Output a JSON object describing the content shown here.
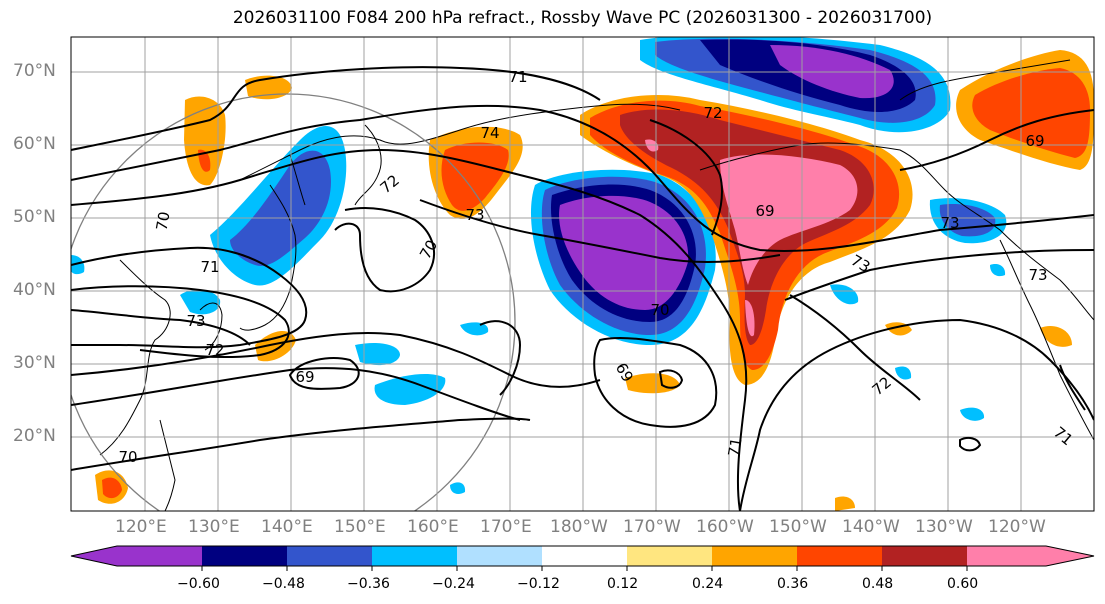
{
  "title": "2026031100 F084 200 hPa refract., Rossby Wave PC (2026031300 - 2026031700)",
  "latitudes": [
    "70°N",
    "60°N",
    "50°N",
    "40°N",
    "30°N",
    "20°N"
  ],
  "longitudes": [
    "120°E",
    "130°E",
    "140°E",
    "150°E",
    "160°E",
    "170°E",
    "180°W",
    "170°W",
    "160°W",
    "150°W",
    "140°W",
    "130°W",
    "120°W"
  ],
  "contour_labels": [
    "71",
    "74",
    "72",
    "73",
    "70",
    "70",
    "69",
    "70",
    "73",
    "72",
    "69",
    "71",
    "73",
    "73",
    "72",
    "69",
    "69",
    "70",
    "71",
    "72",
    "71",
    "73"
  ],
  "colorbar": {
    "colors": [
      "#9933cc",
      "#000080",
      "#3355cc",
      "#00bfff",
      "#b0e0ff",
      "#ffffff",
      "#ffe680",
      "#ffa500",
      "#ff4500",
      "#b22222",
      "#ff7faa"
    ],
    "tick_labels": [
      "−0.60",
      "−0.48",
      "−0.36",
      "−0.24",
      "−0.12",
      "0.12",
      "0.24",
      "0.36",
      "0.48",
      "0.60"
    ]
  }
}
